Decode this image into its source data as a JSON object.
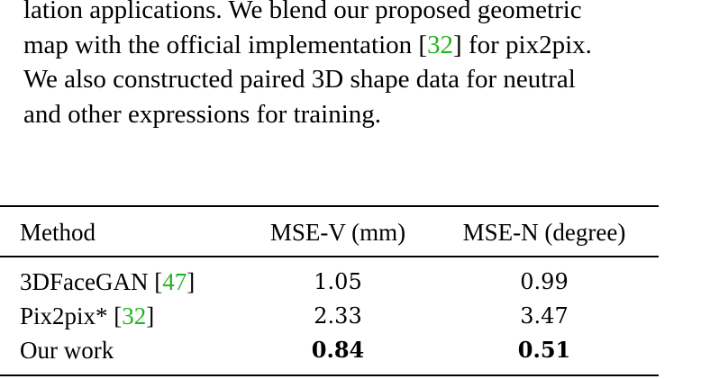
{
  "paragraph": {
    "line1": "lation applications.  We blend our proposed geometric",
    "line2_pre": "map with the official implementation [",
    "line2_cite": "32",
    "line2_post": "] for pix2pix.",
    "line3": "We also constructed paired 3D shape data for neutral",
    "line4": "and other expressions for training."
  },
  "table": {
    "headers": [
      "Method",
      "MSE-V (mm)",
      "MSE-N (degree)"
    ],
    "rows": [
      {
        "method": "3DFaceGAN [",
        "cite": "47",
        "method_post": "]",
        "mse_v": "1.05",
        "mse_n": "0.99",
        "bold": false
      },
      {
        "method": "Pix2pix* [",
        "cite": "32",
        "method_post": "]",
        "mse_v": "2.33",
        "mse_n": "3.47",
        "bold": false
      },
      {
        "method": "Our work",
        "cite": "",
        "method_post": "",
        "mse_v": "0.84",
        "mse_n": "0.51",
        "bold": true
      }
    ]
  },
  "colors": {
    "text": "#000000",
    "citation": "#22b422"
  }
}
